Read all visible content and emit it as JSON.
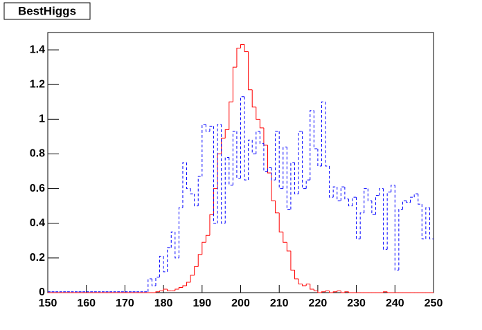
{
  "chart_data": {
    "type": "histogram",
    "title": "BestHiggs",
    "bins": [
      150,
      151,
      152,
      153,
      154,
      155,
      156,
      157,
      158,
      159,
      160,
      161,
      162,
      163,
      164,
      165,
      166,
      167,
      168,
      169,
      170,
      171,
      172,
      173,
      174,
      175,
      176,
      177,
      178,
      179,
      180,
      181,
      182,
      183,
      184,
      185,
      186,
      187,
      188,
      189,
      190,
      191,
      192,
      193,
      194,
      195,
      196,
      197,
      198,
      199,
      200,
      201,
      202,
      203,
      204,
      205,
      206,
      207,
      208,
      209,
      210,
      211,
      212,
      213,
      214,
      215,
      216,
      217,
      218,
      219,
      220,
      221,
      222,
      223,
      224,
      225,
      226,
      227,
      228,
      229,
      230,
      231,
      232,
      233,
      234,
      235,
      236,
      237,
      238,
      239,
      240,
      241,
      242,
      243,
      244,
      245,
      246,
      247,
      248,
      249,
      250
    ],
    "series": [
      {
        "color": "#ff0000",
        "dash": false,
        "values": [
          0,
          0,
          0,
          0,
          0,
          0,
          0,
          0,
          0,
          0,
          0,
          0,
          0,
          0,
          0,
          0,
          0,
          0,
          0,
          0,
          0,
          0,
          0,
          0,
          0,
          0,
          0,
          0,
          0.005,
          0.01,
          0.02,
          0.01,
          0.01,
          0.02,
          0.03,
          0.04,
          0.06,
          0.1,
          0.15,
          0.22,
          0.29,
          0.33,
          0.45,
          0.6,
          0.8,
          0.89,
          0.94,
          1.1,
          1.3,
          1.41,
          1.43,
          1.39,
          1.17,
          1.07,
          1.0,
          0.95,
          0.85,
          0.69,
          0.53,
          0.46,
          0.35,
          0.29,
          0.24,
          0.13,
          0.08,
          0.05,
          0.04,
          0.05,
          0.02,
          0.01,
          0,
          0.005,
          0.01,
          0,
          0.005,
          0.01,
          0,
          0.005,
          0,
          0,
          0,
          0,
          0,
          0,
          0,
          0,
          0,
          0.005,
          0,
          0,
          0,
          0,
          0,
          0,
          0,
          0,
          0,
          0,
          0,
          0
        ]
      },
      {
        "color": "#0000ff",
        "dash": true,
        "values": [
          0.005,
          0.005,
          0.005,
          0.005,
          0.005,
          0.005,
          0.005,
          0.005,
          0.005,
          0.005,
          0.005,
          0.005,
          0.005,
          0.005,
          0.005,
          0.005,
          0.005,
          0.005,
          0.005,
          0.005,
          0.005,
          0.005,
          0.005,
          0.005,
          0.005,
          0.005,
          0.08,
          0.04,
          0.09,
          0.21,
          0.12,
          0.26,
          0.35,
          0.2,
          0.49,
          0.75,
          0.6,
          0.57,
          0.5,
          0.67,
          0.97,
          0.93,
          0.96,
          0.4,
          0.97,
          0.4,
          0.78,
          0.62,
          0.93,
          0.66,
          1.13,
          0.65,
          0.88,
          0.8,
          0.93,
          0.86,
          0.7,
          0.72,
          0.65,
          0.93,
          0.6,
          0.84,
          0.48,
          0.75,
          0.57,
          0.93,
          0.6,
          0.65,
          1.05,
          0.83,
          0.73,
          1.1,
          0.73,
          0.55,
          0.61,
          0.53,
          0.61,
          0.54,
          0.5,
          0.55,
          0.31,
          0.46,
          0.6,
          0.53,
          0.45,
          0.56,
          0.6,
          0.25,
          0.58,
          0.62,
          0.13,
          0.48,
          0.53,
          0.52,
          0.55,
          0.57,
          0.51,
          0.31,
          0.49,
          0.31
        ]
      }
    ],
    "xlim": [
      150,
      250
    ],
    "xticks": [
      150,
      160,
      170,
      180,
      190,
      200,
      210,
      220,
      230,
      240,
      250
    ],
    "ylim": [
      0,
      1.5
    ],
    "yticks": [
      0,
      0.2,
      0.4,
      0.6,
      0.8,
      1,
      1.2,
      1.4
    ]
  }
}
